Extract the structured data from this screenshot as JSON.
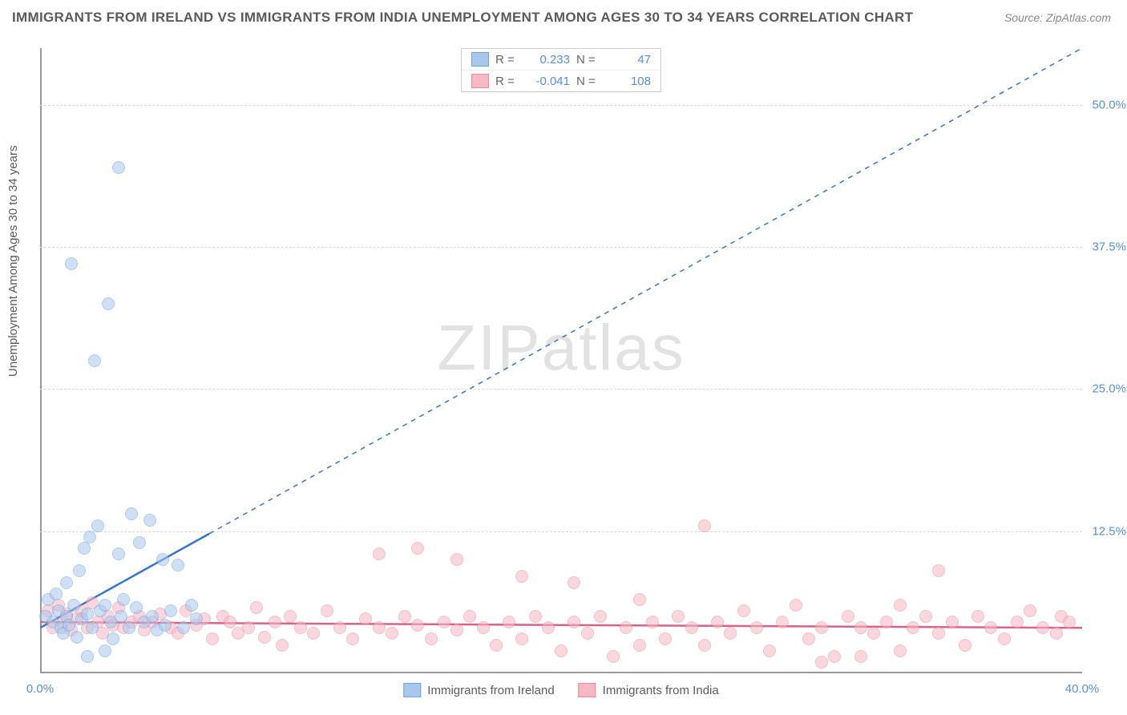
{
  "title": "IMMIGRANTS FROM IRELAND VS IMMIGRANTS FROM INDIA UNEMPLOYMENT AMONG AGES 30 TO 34 YEARS CORRELATION CHART",
  "source": "Source: ZipAtlas.com",
  "ylabel": "Unemployment Among Ages 30 to 34 years",
  "watermark_a": "ZIP",
  "watermark_b": "atlas",
  "chart": {
    "type": "scatter",
    "xlim": [
      0,
      40
    ],
    "ylim": [
      0,
      55
    ],
    "x_ticks": [
      {
        "v": 0,
        "l": "0.0%"
      },
      {
        "v": 40,
        "l": "40.0%"
      }
    ],
    "y_ticks": [
      {
        "v": 12.5,
        "l": "12.5%"
      },
      {
        "v": 25,
        "l": "25.0%"
      },
      {
        "v": 37.5,
        "l": "37.5%"
      },
      {
        "v": 50,
        "l": "50.0%"
      }
    ],
    "grid_color": "#d8d8d8",
    "axis_color": "#999999",
    "background_color": "#ffffff",
    "marker_radius": 8,
    "series": [
      {
        "name": "Immigrants from Ireland",
        "fill": "#a9c7ec",
        "stroke": "#6fa3dc",
        "fill_opacity": 0.55,
        "R": "0.233",
        "N": "47",
        "trend": {
          "x1": 0,
          "y1": 4.0,
          "x2": 40,
          "y2": 55,
          "solid_until_x": 6.5,
          "color": "#3a74c4"
        },
        "points": [
          [
            0.2,
            5.0
          ],
          [
            0.3,
            6.5
          ],
          [
            0.5,
            4.5
          ],
          [
            0.6,
            7.0
          ],
          [
            0.7,
            5.5
          ],
          [
            0.8,
            4.0
          ],
          [
            0.9,
            3.5
          ],
          [
            1.0,
            8.0
          ],
          [
            1.0,
            5.0
          ],
          [
            1.1,
            4.2
          ],
          [
            1.2,
            36.0
          ],
          [
            1.3,
            6.0
          ],
          [
            1.4,
            3.2
          ],
          [
            1.5,
            9.0
          ],
          [
            1.6,
            4.8
          ],
          [
            1.7,
            11.0
          ],
          [
            1.8,
            5.2
          ],
          [
            1.9,
            12.0
          ],
          [
            2.0,
            4.0
          ],
          [
            2.1,
            27.5
          ],
          [
            2.2,
            13.0
          ],
          [
            2.3,
            5.5
          ],
          [
            2.5,
            6.0
          ],
          [
            2.6,
            32.5
          ],
          [
            2.7,
            4.5
          ],
          [
            2.8,
            3.0
          ],
          [
            3.0,
            44.5
          ],
          [
            3.0,
            10.5
          ],
          [
            3.1,
            5.0
          ],
          [
            3.2,
            6.5
          ],
          [
            3.4,
            4.0
          ],
          [
            3.5,
            14.0
          ],
          [
            3.7,
            5.8
          ],
          [
            3.8,
            11.5
          ],
          [
            4.0,
            4.5
          ],
          [
            4.2,
            13.5
          ],
          [
            4.3,
            5.0
          ],
          [
            4.5,
            3.8
          ],
          [
            4.7,
            10.0
          ],
          [
            4.8,
            4.2
          ],
          [
            5.0,
            5.5
          ],
          [
            5.3,
            9.5
          ],
          [
            5.5,
            4.0
          ],
          [
            5.8,
            6.0
          ],
          [
            6.0,
            4.8
          ],
          [
            1.8,
            1.5
          ],
          [
            2.5,
            2.0
          ]
        ]
      },
      {
        "name": "Immigrants from India",
        "fill": "#f6b8c5",
        "stroke": "#e88ba1",
        "fill_opacity": 0.55,
        "R": "-0.041",
        "N": "108",
        "trend": {
          "x1": 0,
          "y1": 4.5,
          "x2": 40,
          "y2": 4.0,
          "solid_until_x": 40,
          "color": "#d6648a"
        },
        "points": [
          [
            0.3,
            5.5
          ],
          [
            0.5,
            4.0
          ],
          [
            0.7,
            6.0
          ],
          [
            0.9,
            4.5
          ],
          [
            1.0,
            5.2
          ],
          [
            1.2,
            3.8
          ],
          [
            1.4,
            4.8
          ],
          [
            1.6,
            5.5
          ],
          [
            1.8,
            4.0
          ],
          [
            2.0,
            6.2
          ],
          [
            2.2,
            4.5
          ],
          [
            2.4,
            3.5
          ],
          [
            2.6,
            5.0
          ],
          [
            2.8,
            4.2
          ],
          [
            3.0,
            5.8
          ],
          [
            3.2,
            4.0
          ],
          [
            3.5,
            4.5
          ],
          [
            3.8,
            5.0
          ],
          [
            4.0,
            3.8
          ],
          [
            4.3,
            4.5
          ],
          [
            4.6,
            5.2
          ],
          [
            5.0,
            4.0
          ],
          [
            5.3,
            3.5
          ],
          [
            5.6,
            5.5
          ],
          [
            6.0,
            4.2
          ],
          [
            6.3,
            4.8
          ],
          [
            6.6,
            3.0
          ],
          [
            7.0,
            5.0
          ],
          [
            7.3,
            4.5
          ],
          [
            7.6,
            3.5
          ],
          [
            8.0,
            4.0
          ],
          [
            8.3,
            5.8
          ],
          [
            8.6,
            3.2
          ],
          [
            9.0,
            4.5
          ],
          [
            9.3,
            2.5
          ],
          [
            9.6,
            5.0
          ],
          [
            10.0,
            4.0
          ],
          [
            10.5,
            3.5
          ],
          [
            11.0,
            5.5
          ],
          [
            11.5,
            4.0
          ],
          [
            12.0,
            3.0
          ],
          [
            12.5,
            4.8
          ],
          [
            13.0,
            10.5
          ],
          [
            13.0,
            4.0
          ],
          [
            13.5,
            3.5
          ],
          [
            14.0,
            5.0
          ],
          [
            14.5,
            11.0
          ],
          [
            14.5,
            4.2
          ],
          [
            15.0,
            3.0
          ],
          [
            15.5,
            4.5
          ],
          [
            16.0,
            10.0
          ],
          [
            16.0,
            3.8
          ],
          [
            16.5,
            5.0
          ],
          [
            17.0,
            4.0
          ],
          [
            17.5,
            2.5
          ],
          [
            18.0,
            4.5
          ],
          [
            18.5,
            8.5
          ],
          [
            18.5,
            3.0
          ],
          [
            19.0,
            5.0
          ],
          [
            19.5,
            4.0
          ],
          [
            20.0,
            2.0
          ],
          [
            20.5,
            8.0
          ],
          [
            20.5,
            4.5
          ],
          [
            21.0,
            3.5
          ],
          [
            21.5,
            5.0
          ],
          [
            22.0,
            1.5
          ],
          [
            22.5,
            4.0
          ],
          [
            23.0,
            6.5
          ],
          [
            23.0,
            2.5
          ],
          [
            23.5,
            4.5
          ],
          [
            24.0,
            3.0
          ],
          [
            24.5,
            5.0
          ],
          [
            25.0,
            4.0
          ],
          [
            25.5,
            13.0
          ],
          [
            25.5,
            2.5
          ],
          [
            26.0,
            4.5
          ],
          [
            26.5,
            3.5
          ],
          [
            27.0,
            5.5
          ],
          [
            27.5,
            4.0
          ],
          [
            28.0,
            2.0
          ],
          [
            28.5,
            4.5
          ],
          [
            29.0,
            6.0
          ],
          [
            29.5,
            3.0
          ],
          [
            30.0,
            4.0
          ],
          [
            30.5,
            1.5
          ],
          [
            31.0,
            5.0
          ],
          [
            31.5,
            4.0
          ],
          [
            32.0,
            3.5
          ],
          [
            32.5,
            4.5
          ],
          [
            33.0,
            6.0
          ],
          [
            33.0,
            2.0
          ],
          [
            33.5,
            4.0
          ],
          [
            34.0,
            5.0
          ],
          [
            34.5,
            9.0
          ],
          [
            34.5,
            3.5
          ],
          [
            35.0,
            4.5
          ],
          [
            35.5,
            2.5
          ],
          [
            36.0,
            5.0
          ],
          [
            36.5,
            4.0
          ],
          [
            37.0,
            3.0
          ],
          [
            37.5,
            4.5
          ],
          [
            38.0,
            5.5
          ],
          [
            38.5,
            4.0
          ],
          [
            39.0,
            3.5
          ],
          [
            39.2,
            5.0
          ],
          [
            39.5,
            4.5
          ],
          [
            30.0,
            1.0
          ],
          [
            31.5,
            1.5
          ]
        ]
      }
    ]
  },
  "legend_bottom": [
    {
      "label": "Immigrants from Ireland",
      "fill": "#a9c7ec",
      "stroke": "#6fa3dc"
    },
    {
      "label": "Immigrants from India",
      "fill": "#f6b8c5",
      "stroke": "#e88ba1"
    }
  ]
}
